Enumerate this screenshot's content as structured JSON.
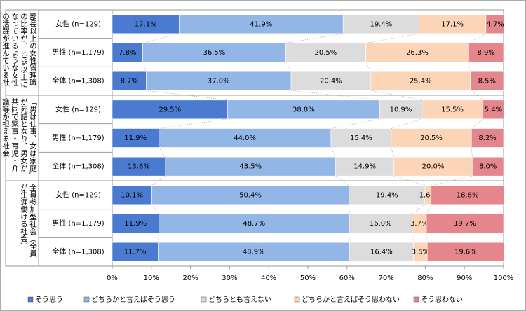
{
  "chart_data": {
    "type": "stacked-barh",
    "groups": [
      "部長以上の女性管理職の比率が、30%以上になっているような女性の活躍が進んでいる社会",
      "「男は仕事、女は家庭」が死語となり、男女が共同で家事・育児・介護等が担える社会",
      "全員参加型社会（全員が生涯働ける社会）"
    ],
    "categories": [
      "女性 (n=129)",
      "男性 (n=1,179)",
      "全体 (n=1,308)",
      "女性 (n=129)",
      "男性 (n=1,179)",
      "全体 (n=1,308)",
      "女性 (n=129)",
      "男性 (n=1,179)",
      "全体 (n=1,308)"
    ],
    "series": [
      {
        "name": "そう思う",
        "color": "#4a7bd0",
        "values": [
          17.1,
          7.8,
          8.7,
          29.5,
          11.9,
          13.6,
          10.1,
          11.9,
          11.7
        ],
        "value_labels": [
          "17.1%",
          "7.8%",
          "8.7%",
          "29.5%",
          "11.9%",
          "13.6%",
          "10.1%",
          "11.9%",
          "11.7%"
        ]
      },
      {
        "name": "どちらかと言えばそう思う",
        "color": "#92b6e6",
        "values": [
          41.9,
          36.5,
          37.0,
          38.8,
          44.0,
          43.5,
          50.4,
          48.7,
          48.9
        ],
        "value_labels": [
          "41.9%",
          "36.5%",
          "37.0%",
          "38.8%",
          "44.0%",
          "43.5%",
          "50.4%",
          "48.7%",
          "48.9%"
        ]
      },
      {
        "name": "どちらとも言えない",
        "color": "#dcdcdc",
        "values": [
          19.4,
          20.5,
          20.4,
          10.9,
          15.4,
          14.9,
          19.4,
          16.0,
          16.4
        ],
        "value_labels": [
          "19.4%",
          "20.5%",
          "20.4%",
          "10.9%",
          "15.4%",
          "14.9%",
          "19.4%",
          "16.0%",
          "16.4%"
        ]
      },
      {
        "name": "どちらかと言えばそう思わない",
        "color": "#fcd5b8",
        "values": [
          17.1,
          26.3,
          25.4,
          15.5,
          20.5,
          20.0,
          1.6,
          3.7,
          3.5
        ],
        "value_labels": [
          "17.1%",
          "26.3%",
          "25.4%",
          "15.5%",
          "20.5%",
          "20.0%",
          "1.6%",
          "3.7%",
          "3.5%"
        ]
      },
      {
        "name": "そう思わない",
        "color": "#e4868b",
        "values": [
          4.7,
          8.9,
          8.5,
          5.4,
          8.2,
          8.0,
          18.6,
          19.7,
          19.6
        ],
        "value_labels": [
          "4.7%",
          "8.9%",
          "8.5%",
          "5.4%",
          "8.2%",
          "8.0%",
          "18.6%",
          "19.7%",
          "19.6%"
        ]
      }
    ],
    "xlim": [
      0,
      100
    ],
    "xticks": [
      {
        "value": 0,
        "label": "0%"
      },
      {
        "value": 10,
        "label": "10%"
      },
      {
        "value": 20,
        "label": "20%"
      },
      {
        "value": 30,
        "label": "30%"
      },
      {
        "value": 40,
        "label": "40%"
      },
      {
        "value": 50,
        "label": "50%"
      },
      {
        "value": 60,
        "label": "60%"
      },
      {
        "value": 70,
        "label": "70%"
      },
      {
        "value": 80,
        "label": "80%"
      },
      {
        "value": 90,
        "label": "90%"
      },
      {
        "value": 100,
        "label": "100%"
      }
    ]
  }
}
